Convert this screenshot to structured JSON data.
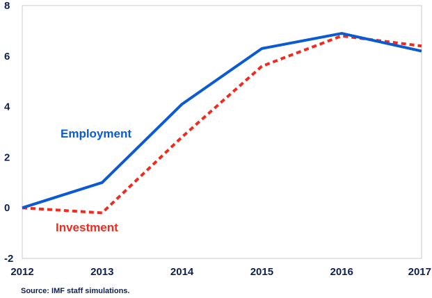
{
  "chart_data": {
    "type": "line",
    "x": [
      2012,
      2013,
      2014,
      2015,
      2016,
      2017
    ],
    "series": [
      {
        "name": "Employment",
        "values": [
          0,
          1.0,
          4.1,
          6.3,
          6.9,
          6.2
        ],
        "color": "#0a5bd3",
        "style": "solid"
      },
      {
        "name": "Investment",
        "values": [
          0,
          -0.2,
          2.8,
          5.6,
          6.8,
          6.4
        ],
        "color": "#f02a1d",
        "style": "dashed"
      }
    ],
    "ylim": [
      -2,
      8
    ],
    "yticks": [
      "8",
      "6",
      "4",
      "2",
      "0",
      "-2"
    ],
    "xticks": [
      "2012",
      "2013",
      "2014",
      "2015",
      "2016",
      "2017"
    ],
    "grid": false,
    "legend": "inline labels",
    "source": "Source: IMF staff simulations."
  }
}
